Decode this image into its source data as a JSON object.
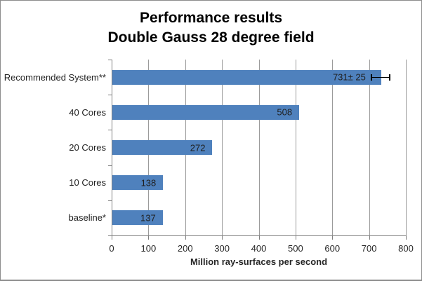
{
  "chart_data": {
    "type": "bar",
    "orientation": "horizontal",
    "title": "Performance results",
    "subtitle": "Double Gauss 28 degree field",
    "xlabel": "Million ray-surfaces per second",
    "xlim": [
      0,
      800
    ],
    "xticks": [
      0,
      100,
      200,
      300,
      400,
      500,
      600,
      700,
      800
    ],
    "categories": [
      "Recommended System**",
      "40 Cores",
      "20 Cores",
      "10 Cores",
      "baseline*"
    ],
    "values": [
      731,
      508,
      272,
      138,
      137
    ],
    "value_labels": [
      "731± 25",
      "508",
      "272",
      "138",
      "137"
    ],
    "error_bars": [
      {
        "index": 0,
        "minus": 25,
        "plus": 25
      }
    ],
    "grid": "vertical-only",
    "legend": "none",
    "colors": {
      "bar": "#4f81bd",
      "gridline": "#9b9b9b",
      "axis": "#7f7f7f",
      "title_text": "#000000",
      "label_text": "#1f1f1f",
      "error_bar": "#000000"
    }
  }
}
